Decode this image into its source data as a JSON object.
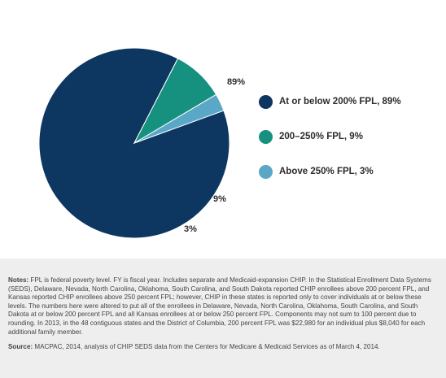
{
  "chart_data": {
    "type": "pie",
    "slices": [
      {
        "label": "At or below 200% FPL, 89%",
        "value": 89,
        "data_label": "89%",
        "color": "#0d3761"
      },
      {
        "label": "200–250% FPL, 9%",
        "value": 9,
        "data_label": "9%",
        "color": "#16917f"
      },
      {
        "label": "Above 250% FPL, 3%",
        "value": 3,
        "data_label": "3%",
        "color": "#5aa7c8"
      }
    ],
    "legend_position": "right"
  },
  "footer": {
    "notes_label": "Notes:",
    "notes_text": " FPL is federal poverty level. FY is fiscal year. Includes separate and Medicaid-expansion CHIP. In the Statistical Enrollment Data Systems (SEDS), Delaware, Nevada, North Carolina, Oklahoma, South Carolina, and South Dakota reported CHIP enrollees above 200 percent FPL, and Kansas reported CHIP enrollees above 250 percent FPL; however, CHIP in these states is reported only to cover individuals at or below these levels. The numbers here were altered to put all of the enrollees in Delaware, Nevada, North Carolina, Oklahoma, South Carolina, and South Dakota at or below 200 percent FPL and all Kansas enrollees at or below 250 percent FPL. Components may not sum to 100 percent due to rounding. In 2013, in the 48 contiguous states and the District of Columbia, 200 percent FPL was $22,980 for an individual plus $8,040 for each additional family member.",
    "source_label": "Source:",
    "source_text": " MACPAC, 2014, analysis of CHIP SEDS data from the Centers for Medicare & Medicaid Services as of March 4, 2014."
  }
}
